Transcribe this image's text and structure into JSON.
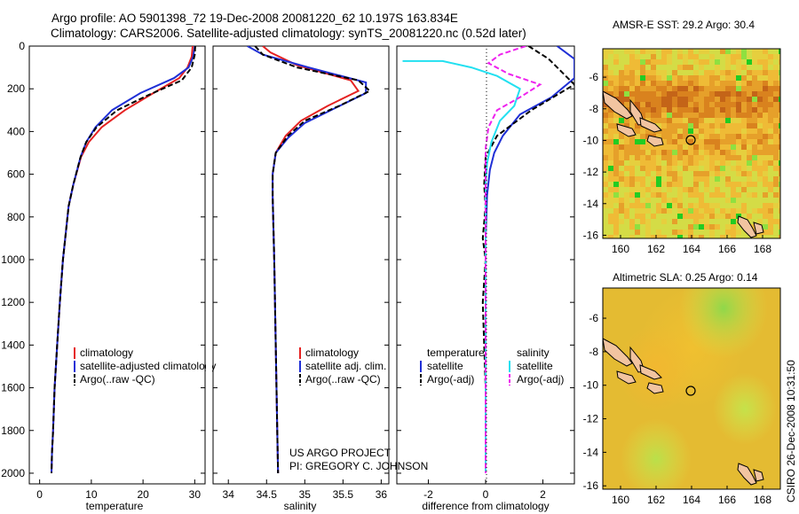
{
  "header": {
    "line1": "Argo profile: AO 5901398_72 19-Dec-2008 20081220_62 10.197S 163.834E",
    "line2": "Climatology: CARS2006. Satellite-adjusted climatology: synTS_20081220.nc (0.52d later)"
  },
  "project": {
    "line1": "US ARGO PROJECT",
    "line2": "PI: GREGORY C. JOHNSON"
  },
  "stamp": "CSIRO 26-Dec-2008 10:31:50",
  "colors": {
    "climatology": "#e52222",
    "satellite": "#1f2fd6",
    "argo": "#000000",
    "satellite_sal": "#22e0f0",
    "argo_sal": "#ee22ee"
  },
  "chart_data": [
    {
      "type": "line",
      "panel": "temperature",
      "xlabel": "temperature",
      "ylabel": "",
      "xlim": [
        -2,
        32
      ],
      "ylim": [
        2050,
        0
      ],
      "y_reversed": true,
      "xticks": [
        "0",
        "10",
        "20",
        "30"
      ],
      "yticks": [
        "0",
        "200",
        "400",
        "600",
        "800",
        "1000",
        "1200",
        "1400",
        "1600",
        "1800",
        "2000"
      ],
      "legend": [
        "climatology",
        "satellite-adjusted climatology",
        "Argo(..raw -QC)"
      ],
      "series": [
        {
          "name": "climatology",
          "color_key": "climatology",
          "dash": "",
          "x": [
            29.6,
            29.4,
            28.6,
            27.0,
            22.0,
            16.5,
            12.0,
            9.5,
            8.0,
            6.5,
            5.6,
            4.5,
            3.9,
            3.4,
            2.9,
            2.6,
            2.4,
            2.3
          ],
          "y": [
            0,
            50,
            100,
            150,
            220,
            300,
            380,
            450,
            520,
            650,
            750,
            1000,
            1200,
            1400,
            1600,
            1800,
            1900,
            2000
          ]
        },
        {
          "name": "satellite-adjusted climatology",
          "color_key": "satellite",
          "dash": "",
          "x": [
            30.0,
            29.7,
            28.8,
            26.0,
            19.5,
            14.0,
            10.8,
            9.0,
            7.9,
            6.5,
            5.6,
            4.5,
            3.9,
            3.4,
            2.9,
            2.6,
            2.4,
            2.3
          ],
          "y": [
            0,
            50,
            100,
            150,
            220,
            300,
            380,
            450,
            520,
            650,
            750,
            1000,
            1200,
            1400,
            1600,
            1800,
            1900,
            2000
          ]
        },
        {
          "name": "Argo(..raw -QC)",
          "color_key": "argo",
          "dash": "6 3",
          "x": [
            30.1,
            30.0,
            29.4,
            27.5,
            21.0,
            15.0,
            11.0,
            9.0,
            7.9,
            6.5,
            5.6,
            4.5,
            3.9,
            3.4,
            2.9,
            2.6,
            2.4,
            2.3
          ],
          "y": [
            0,
            40,
            100,
            160,
            230,
            300,
            380,
            450,
            520,
            650,
            750,
            1000,
            1200,
            1400,
            1600,
            1800,
            1900,
            2000
          ]
        }
      ]
    },
    {
      "type": "line",
      "panel": "salinity",
      "xlabel": "salinity",
      "ylabel": "",
      "xlim": [
        33.8,
        36.1
      ],
      "ylim": [
        2050,
        0
      ],
      "y_reversed": true,
      "xticks": [
        "34",
        "34.5",
        "35",
        "35.5",
        "36"
      ],
      "yticks": [],
      "legend": [
        "climatology",
        "satellite adj. clim.",
        "Argo(..raw -QC)"
      ],
      "series": [
        {
          "name": "climatology",
          "color_key": "climatology",
          "dash": "",
          "x": [
            34.45,
            34.55,
            34.9,
            35.6,
            35.7,
            35.3,
            34.95,
            34.75,
            34.62,
            34.58,
            34.58,
            34.6,
            34.62,
            34.64,
            34.65
          ],
          "y": [
            0,
            30,
            90,
            160,
            210,
            280,
            350,
            420,
            500,
            600,
            700,
            1000,
            1400,
            1800,
            2000
          ]
        },
        {
          "name": "satellite adj. clim.",
          "color_key": "satellite",
          "dash": "",
          "x": [
            34.25,
            34.45,
            35.05,
            35.8,
            35.8,
            35.4,
            35.0,
            34.78,
            34.62,
            34.58,
            34.58,
            34.6,
            34.62,
            34.64,
            34.65
          ],
          "y": [
            0,
            40,
            100,
            170,
            220,
            290,
            360,
            430,
            500,
            600,
            700,
            1000,
            1400,
            1800,
            2000
          ]
        },
        {
          "name": "Argo(..raw -QC)",
          "color_key": "argo",
          "dash": "6 3",
          "x": [
            34.35,
            34.45,
            34.9,
            35.7,
            35.85,
            35.45,
            35.0,
            34.78,
            34.62,
            34.58,
            34.58,
            34.6,
            34.62,
            34.64,
            34.65
          ],
          "y": [
            0,
            40,
            100,
            160,
            210,
            280,
            350,
            420,
            500,
            600,
            700,
            1000,
            1400,
            1800,
            2000
          ]
        }
      ]
    },
    {
      "type": "line",
      "panel": "difference",
      "xlabel": "difference from climatology",
      "ylabel": "",
      "xlim": [
        -3.1,
        3.1
      ],
      "ylim": [
        2050,
        0
      ],
      "y_reversed": true,
      "xticks": [
        "-2",
        "0",
        "2"
      ],
      "yticks": [],
      "legend_left": [
        "temperature",
        "satellite",
        "Argo(-adj)"
      ],
      "legend_right": [
        "salinity",
        "satellite",
        "Argo(-adj)"
      ],
      "series": [
        {
          "name": "temperature satellite",
          "color_key": "satellite",
          "dash": "",
          "x": [
            2.5,
            3.1,
            3.1,
            2.3,
            1.2,
            0.6,
            0.3,
            0.15,
            0.05,
            0.0,
            0.0,
            0.0
          ],
          "y": [
            0,
            60,
            150,
            240,
            320,
            420,
            500,
            580,
            700,
            900,
            1400,
            2000
          ]
        },
        {
          "name": "temperature Argo(-adj)",
          "color_key": "argo",
          "dash": "6 3",
          "x": [
            1.5,
            2.2,
            3.1,
            1.6,
            0.4,
            0.0,
            -0.05,
            0.0,
            -0.1,
            0.0,
            -0.1,
            0.0,
            0.0
          ],
          "y": [
            0,
            60,
            180,
            300,
            420,
            520,
            650,
            750,
            900,
            1000,
            1200,
            1600,
            2000
          ]
        },
        {
          "name": "salinity satellite",
          "color_key": "satellite_sal",
          "dash": "",
          "x": [
            -2.9,
            -1.5,
            -0.5,
            0.4,
            1.2,
            1.0,
            0.5,
            0.2,
            0.05,
            0.0,
            0.0,
            0.0
          ],
          "y": [
            70,
            70,
            100,
            140,
            200,
            280,
            350,
            450,
            550,
            650,
            1000,
            2000
          ]
        },
        {
          "name": "salinity Argo(-adj)",
          "color_key": "argo_sal",
          "dash": "6 3",
          "x": [
            1.4,
            0.5,
            0.1,
            0.8,
            1.9,
            1.2,
            0.4,
            0.1,
            0.0,
            0.0,
            0.0
          ],
          "y": [
            0,
            40,
            80,
            130,
            180,
            240,
            300,
            380,
            480,
            700,
            2000
          ]
        }
      ]
    },
    {
      "type": "heatmap",
      "panel": "sst-map",
      "title": "AMSR-E SST: 29.2 Argo: 30.4",
      "xlim": [
        159,
        169
      ],
      "ylim": [
        -16.2,
        -4.2
      ],
      "xticks": [
        "160",
        "162",
        "164",
        "166",
        "168"
      ],
      "yticks": [
        "-6",
        "-8",
        "-10",
        "-12",
        "-14",
        "-16"
      ],
      "float_position": {
        "lon": 163.834,
        "lat": -10.197
      }
    },
    {
      "type": "heatmap",
      "panel": "sla-map",
      "title": "Altimetric SLA: 0.25 Argo: 0.14",
      "xlim": [
        159,
        169
      ],
      "ylim": [
        -16.2,
        -4.2
      ],
      "xticks": [
        "160",
        "162",
        "164",
        "166",
        "168"
      ],
      "yticks": [
        "-6",
        "-8",
        "-10",
        "-12",
        "-14",
        "-16"
      ],
      "float_position": {
        "lon": 163.834,
        "lat": -10.197
      }
    }
  ]
}
